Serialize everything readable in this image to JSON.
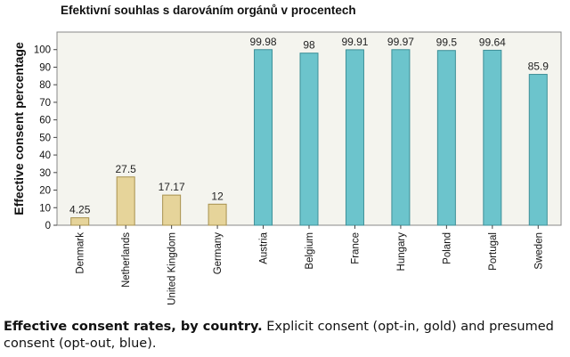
{
  "chart_data": {
    "type": "bar",
    "title": "Efektivní souhlas s darováním orgánů v procentech",
    "ylabel": "Effective consent percentage",
    "xlabel": "",
    "ylim": [
      0,
      110
    ],
    "yticks": [
      0,
      10,
      20,
      30,
      40,
      50,
      60,
      70,
      80,
      90,
      100
    ],
    "grid": false,
    "categories": [
      "Denmark",
      "Netherlands",
      "United Kingdom",
      "Germany",
      "Austria",
      "Belgium",
      "France",
      "Hungary",
      "Poland",
      "Portugal",
      "Sweden"
    ],
    "values": [
      4.25,
      27.5,
      17.17,
      12,
      99.98,
      98,
      99.91,
      99.97,
      99.5,
      99.64,
      85.9
    ],
    "value_labels": [
      "4.25",
      "27.5",
      "17.17",
      "12",
      "99.98",
      "98",
      "99.91",
      "99.97",
      "99.5",
      "99.64",
      "85.9"
    ],
    "groups": [
      "explicit",
      "explicit",
      "explicit",
      "explicit",
      "presumed",
      "presumed",
      "presumed",
      "presumed",
      "presumed",
      "presumed",
      "presumed"
    ],
    "colors": {
      "explicit": "#e6d49a",
      "explicit_stroke": "#a8924e",
      "presumed": "#6cc4cc",
      "presumed_stroke": "#3e8f97",
      "plot_bg": "#f4f4ee"
    }
  },
  "caption": {
    "bold": "Effective consent rates, by country.",
    "text": " Explicit consent (opt-in, gold) and presumed consent (opt-out, blue)."
  }
}
